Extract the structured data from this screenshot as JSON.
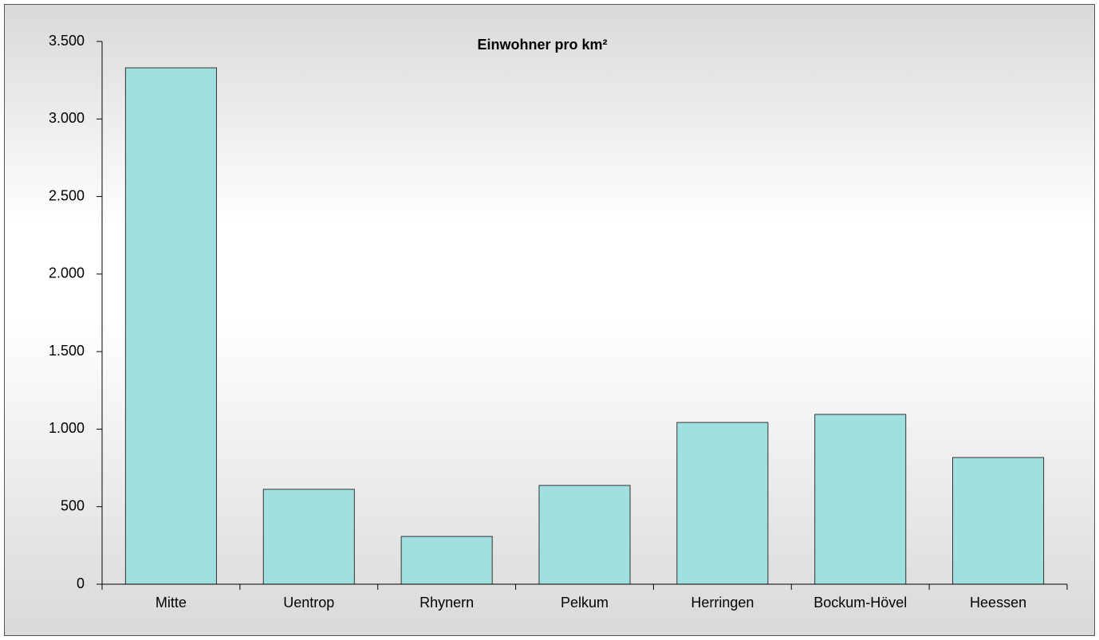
{
  "chart_data": {
    "type": "bar",
    "title": "Einwohner pro km²",
    "categories": [
      "Mitte",
      "Uentrop",
      "Rhynern",
      "Pelkum",
      "Herringen",
      "Bockum-Hövel",
      "Heessen"
    ],
    "values": [
      3330,
      612,
      308,
      637,
      1043,
      1095,
      817
    ],
    "color": "#a0e0e0",
    "ylim": [
      0,
      3500
    ],
    "yticks": [
      0,
      500,
      {
        "value": 1000,
        "label": "1.000"
      },
      {
        "value": 1500,
        "label": "1.500"
      },
      {
        "value": 2000,
        "label": "2.000"
      },
      {
        "value": 2500,
        "label": "2.500"
      },
      {
        "value": 3000,
        "label": "3.000"
      },
      {
        "value": 3500,
        "label": "3.500"
      }
    ],
    "grid": false
  }
}
